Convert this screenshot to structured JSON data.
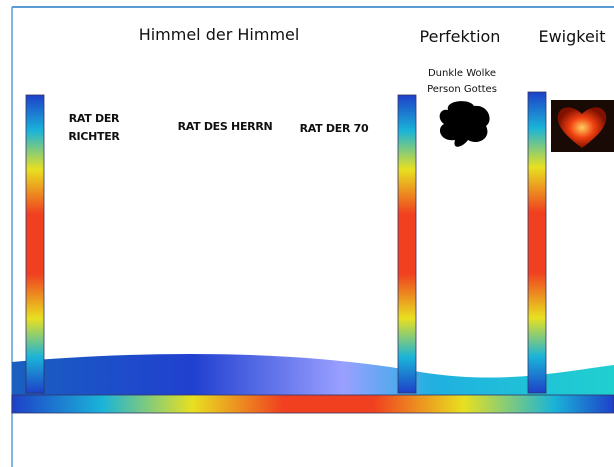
{
  "headers": [
    "Himmel der Himmel",
    "Perfektion",
    "Ewigkeit"
  ],
  "councils": {
    "richter": [
      "RAT DER",
      "RICHTER"
    ],
    "herrn": "RAT DES  HERRN",
    "siebzig": "RAT DER 70"
  },
  "cloud": {
    "lines": [
      "Dunkle Wolke",
      "Person Gottes"
    ]
  }
}
